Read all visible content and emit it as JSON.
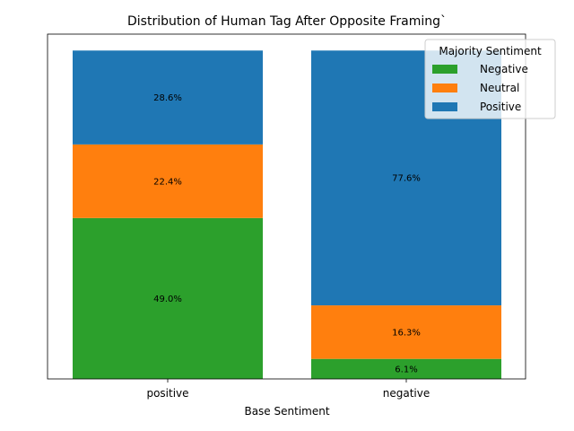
{
  "chart_data": {
    "type": "bar",
    "stacked": true,
    "title": "Distribution of Human Tag After Opposite Framing`",
    "xlabel": "Base Sentiment",
    "ylabel": "",
    "categories": [
      "positive",
      "negative"
    ],
    "ylim": [
      0,
      100
    ],
    "grid": false,
    "series": [
      {
        "name": "Negative",
        "values": [
          49.0,
          6.1
        ],
        "color": "#2ca02c",
        "labels": [
          "49.0%",
          "6.1%"
        ]
      },
      {
        "name": "Neutral",
        "values": [
          22.4,
          16.3
        ],
        "color": "#ff7f0e",
        "labels": [
          "22.4%",
          "16.3%"
        ]
      },
      {
        "name": "Positive",
        "values": [
          28.6,
          77.6
        ],
        "color": "#1f77b4",
        "labels": [
          "28.6%",
          "77.6%"
        ]
      }
    ],
    "legend": {
      "title": "Majority Sentiment",
      "placement": "top-right"
    }
  }
}
